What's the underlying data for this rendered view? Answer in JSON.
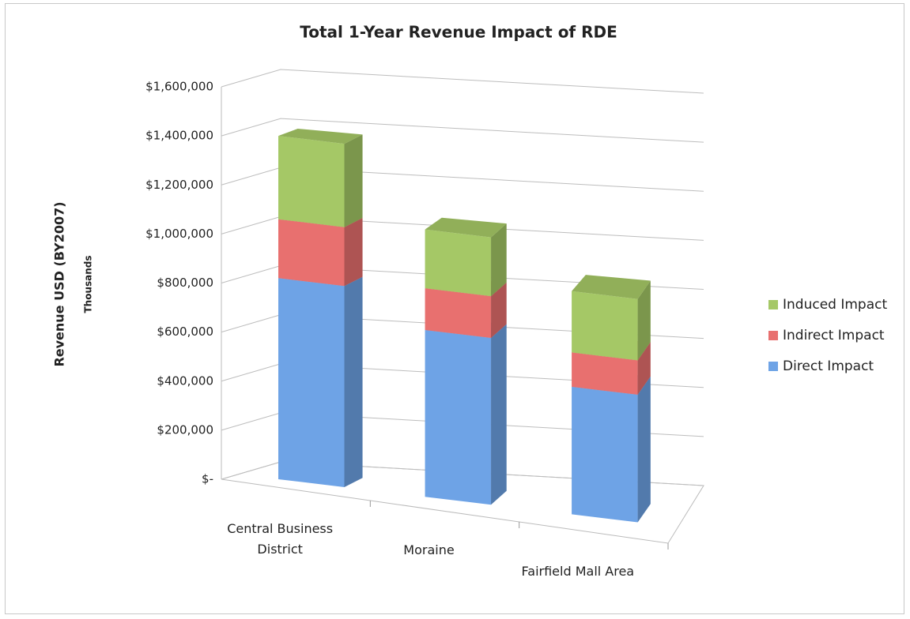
{
  "chart_data": {
    "type": "bar3d_stacked",
    "title": "Total 1-Year Revenue Impact of RDE",
    "y_label": "Revenue USD (BY2007)",
    "y_sublabel": "Thousands",
    "categories": [
      "Central Business District",
      "Moraine",
      "Fairfield Mall Area"
    ],
    "series": [
      {
        "name": "Direct Impact",
        "color": "#6ea3e6",
        "values": [
          820000,
          680000,
          520000
        ]
      },
      {
        "name": "Indirect Impact",
        "color": "#e8706f",
        "values": [
          240000,
          170000,
          140000
        ]
      },
      {
        "name": "Induced Impact",
        "color": "#a5c866",
        "values": [
          340000,
          240000,
          250000
        ]
      }
    ],
    "ylim": [
      0,
      1600000
    ],
    "yticks": [
      {
        "value": 0,
        "label": "$-"
      },
      {
        "value": 200000,
        "label": "$200,000"
      },
      {
        "value": 400000,
        "label": "$400,000"
      },
      {
        "value": 600000,
        "label": "$600,000"
      },
      {
        "value": 800000,
        "label": "$800,000"
      },
      {
        "value": 1000000,
        "label": "$1,000,000"
      },
      {
        "value": 1200000,
        "label": "$1,200,000"
      },
      {
        "value": 1400000,
        "label": "$1,400,000"
      },
      {
        "value": 1600000,
        "label": "$1,600,000"
      }
    ],
    "grid": true,
    "legend": "right"
  }
}
